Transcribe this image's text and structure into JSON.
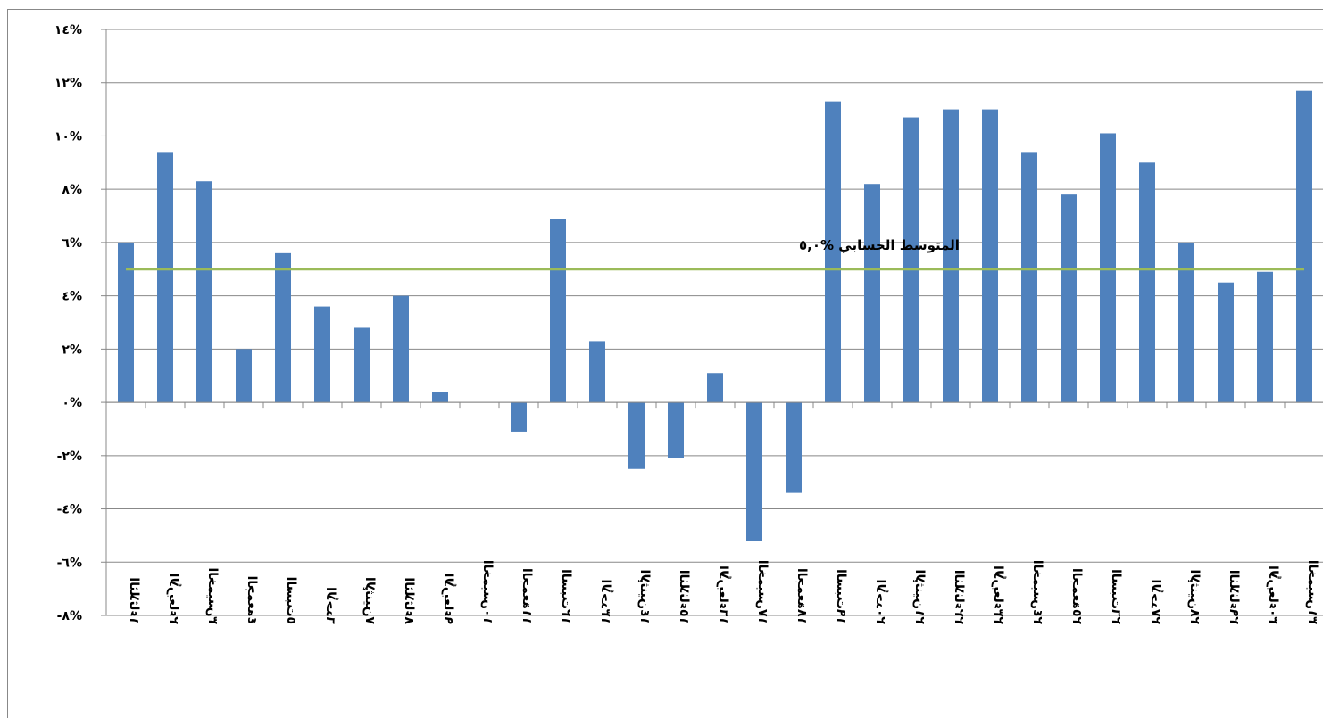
{
  "chart_data": {
    "type": "bar",
    "categories": [
      "الثلاثاء١",
      "الأربعاء٢",
      "الخميس٣",
      "الجمعة٤",
      "السبت٥",
      "الأحد٦",
      "الإثنين٧",
      "الثلاثاء٨",
      "الأربعاء٩",
      "الخميس١٠",
      "الجمعة١١",
      "السبت١٢",
      "الأحد١٣",
      "الإثنين١٤",
      "الثلاثاء١٥",
      "الأربعاء١٦",
      "الخميس١٧",
      "الجمعة١٨",
      "السبت١٩",
      "الأحد٢٠",
      "الإثنين٢١",
      "الثلاثاء٢٢",
      "الأربعاء٢٣",
      "الخميس٢٤",
      "الجمعة٢٥",
      "السبت٢٦",
      "الأحد٢٧",
      "الإثنين٢٨",
      "الثلاثاء٢٩",
      "الأربعاء٣٠",
      "الخميس٣١"
    ],
    "values": [
      6.0,
      9.4,
      8.3,
      2.0,
      5.6,
      3.6,
      2.8,
      4.0,
      0.4,
      0,
      -1.1,
      6.9,
      2.3,
      -2.5,
      -2.1,
      1.1,
      -5.2,
      -3.4,
      11.3,
      8.2,
      10.7,
      11.0,
      11.0,
      9.4,
      7.8,
      10.1,
      9.0,
      6.0,
      4.5,
      4.9,
      11.7
    ],
    "color": "#4f81bd",
    "ylim": [
      -8,
      14
    ],
    "yticks": [
      {
        "value": -8,
        "label": "-٨%"
      },
      {
        "value": -6,
        "label": "-٦%"
      },
      {
        "value": -4,
        "label": "-٤%"
      },
      {
        "value": -2,
        "label": "-٢%"
      },
      {
        "value": 0,
        "label": "٠%"
      },
      {
        "value": 2,
        "label": "٢%"
      },
      {
        "value": 4,
        "label": "٤%"
      },
      {
        "value": 6,
        "label": "٦%"
      },
      {
        "value": 8,
        "label": "٨%"
      },
      {
        "value": 10,
        "label": "١٠%"
      },
      {
        "value": 12,
        "label": "١٢%"
      },
      {
        "value": 14,
        "label": "١٤%"
      }
    ],
    "grid": true,
    "average": {
      "value": 5.0,
      "label": "المتوسط الحسابي %٥,٠",
      "color": "#9bbb59"
    }
  }
}
